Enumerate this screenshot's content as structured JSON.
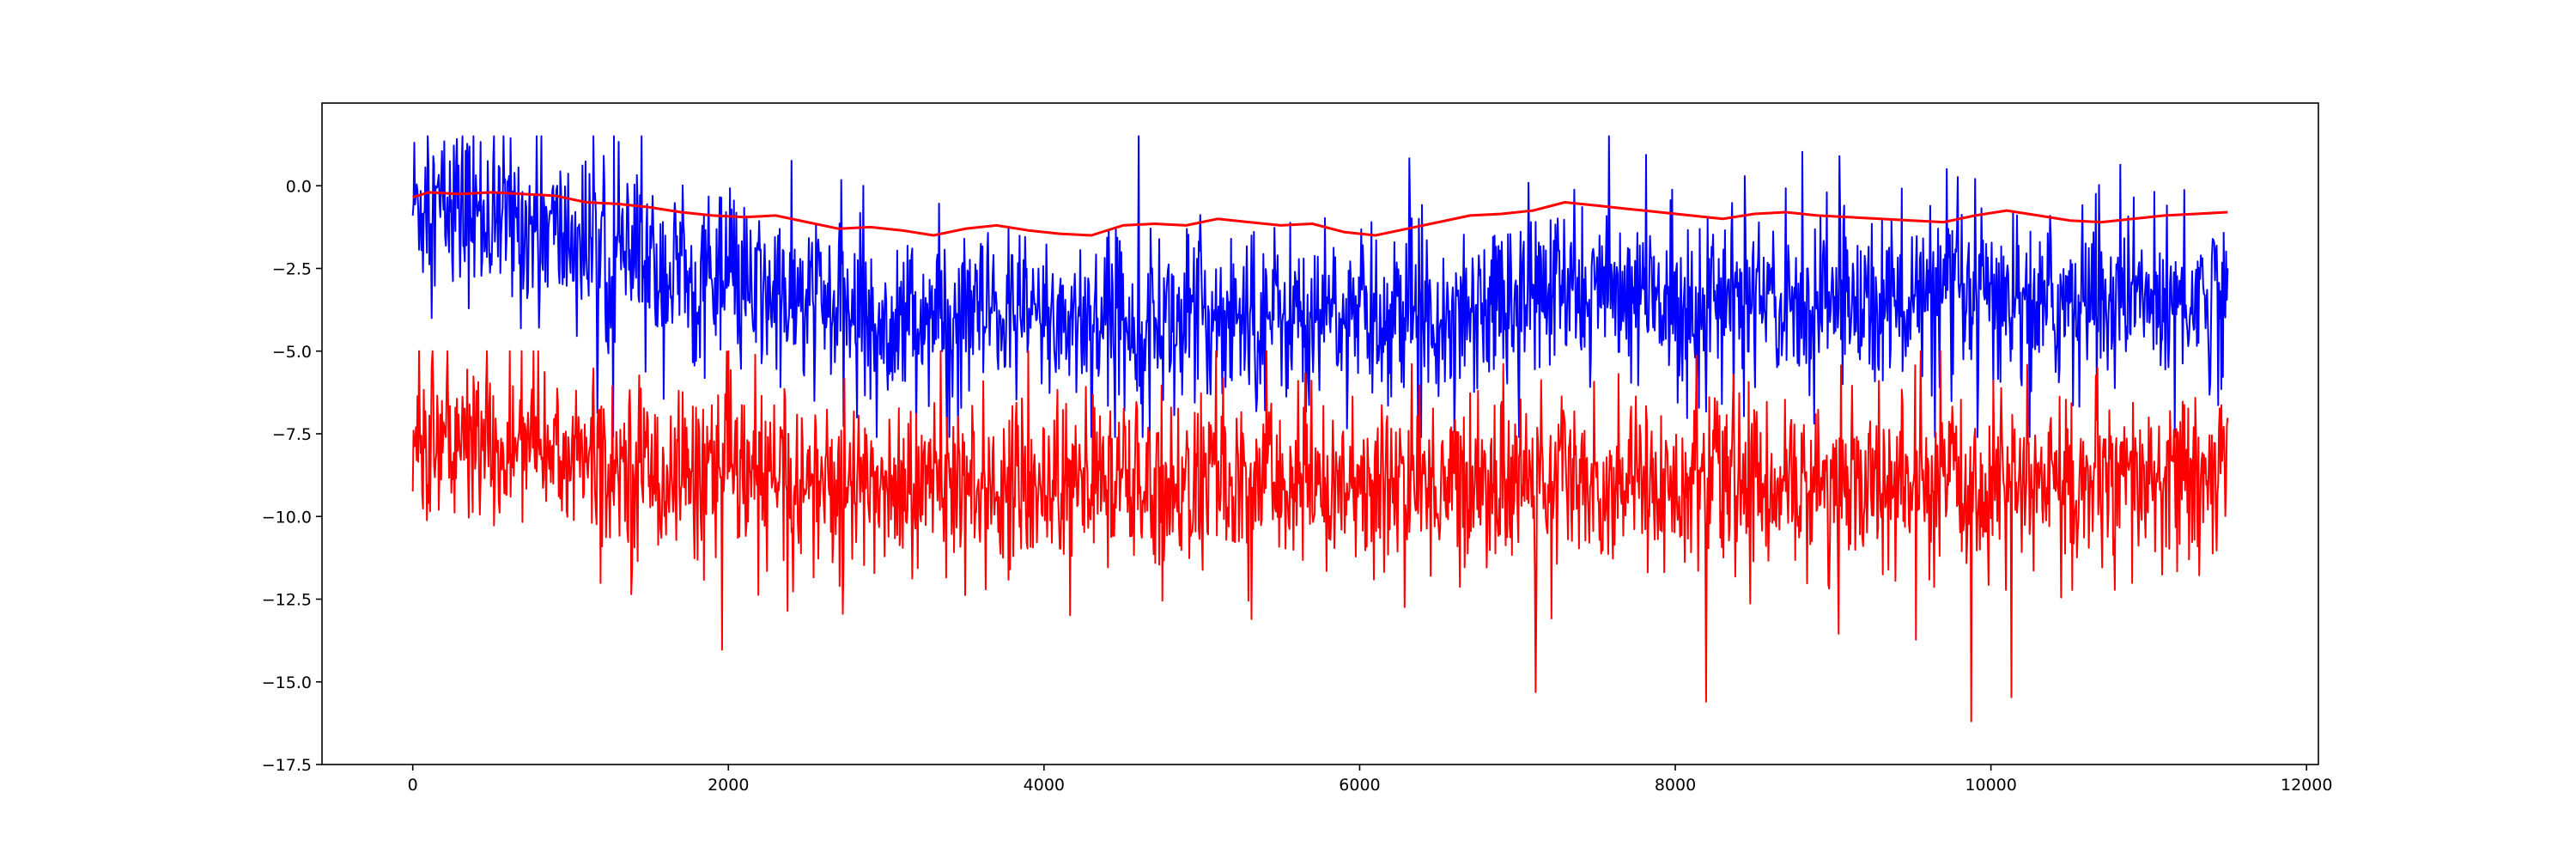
{
  "chart_data": {
    "type": "line",
    "title": "",
    "xlabel": "",
    "ylabel": "",
    "xlim": [
      -575,
      12075
    ],
    "ylim": [
      -17.5,
      2.5
    ],
    "grid": false,
    "legend": "none",
    "x_ticks": [
      0,
      2000,
      4000,
      6000,
      8000,
      10000,
      12000
    ],
    "x_tick_labels": [
      "0",
      "2000",
      "4000",
      "6000",
      "8000",
      "10000",
      "12000"
    ],
    "y_ticks": [
      0.0,
      -2.5,
      -5.0,
      -7.5,
      -10.0,
      -12.5,
      -15.0,
      -17.5
    ],
    "y_tick_labels": [
      "0.0",
      "−2.5",
      "−5.0",
      "−7.5",
      "−10.0",
      "−12.5",
      "−15.0",
      "−17.5"
    ],
    "x_range": [
      0,
      11500
    ],
    "series": [
      {
        "color": "#0000ff",
        "style": "noisy",
        "center_profile": {
          "x": [
            0,
            400,
            800,
            1200,
            1600,
            2000,
            2400,
            2800,
            3200,
            3600,
            4000,
            4400,
            4800,
            5200,
            5600,
            6000,
            6400,
            6800,
            7200,
            7600,
            8000,
            8400,
            8800,
            9200,
            9600,
            10000,
            10400,
            10800,
            11200,
            11500
          ],
          "y": [
            -0.5,
            -0.8,
            -1.3,
            -2.0,
            -2.7,
            -3.1,
            -3.5,
            -3.9,
            -4.0,
            -4.0,
            -4.0,
            -4.0,
            -4.0,
            -3.9,
            -3.9,
            -4.0,
            -3.8,
            -3.5,
            -3.2,
            -3.3,
            -3.5,
            -3.5,
            -3.4,
            -3.5,
            -3.5,
            -3.4,
            -3.5,
            -3.5,
            -3.4,
            -3.3
          ]
        },
        "spread": 1.3,
        "max": 1.5,
        "min": -7.6
      },
      {
        "color": "#ff0000",
        "style": "noisy",
        "center_profile": {
          "x": [
            0,
            400,
            800,
            1200,
            1600,
            2000,
            2400,
            2800,
            3200,
            3600,
            4000,
            4400,
            4800,
            5200,
            5600,
            6000,
            6400,
            6800,
            7200,
            7600,
            8000,
            8400,
            8800,
            9200,
            9600,
            10000,
            10400,
            10800,
            11200,
            11500
          ],
          "y": [
            -7.6,
            -7.8,
            -8.0,
            -8.3,
            -8.6,
            -8.8,
            -9.0,
            -9.1,
            -9.1,
            -9.0,
            -9.0,
            -9.0,
            -9.1,
            -9.0,
            -9.0,
            -9.1,
            -9.0,
            -8.9,
            -8.8,
            -8.9,
            -9.0,
            -9.0,
            -9.0,
            -9.1,
            -9.1,
            -9.0,
            -9.0,
            -9.1,
            -9.0,
            -9.0
          ]
        },
        "spread": 1.3,
        "max": -5.0,
        "min": -16.6
      },
      {
        "color": "#ff0000",
        "style": "smooth",
        "x": [
          0,
          100,
          300,
          500,
          700,
          900,
          1100,
          1300,
          1500,
          1700,
          1900,
          2100,
          2300,
          2500,
          2700,
          2900,
          3100,
          3300,
          3500,
          3700,
          3900,
          4100,
          4300,
          4500,
          4700,
          4900,
          5100,
          5300,
          5500,
          5700,
          5900,
          6100,
          6300,
          6500,
          6700,
          6900,
          7100,
          7300,
          7500,
          7700,
          7900,
          8100,
          8300,
          8500,
          8700,
          8900,
          9100,
          9300,
          9500,
          9700,
          9900,
          10100,
          10300,
          10500,
          10700,
          10900,
          11100,
          11300,
          11500
        ],
        "y": [
          -0.35,
          -0.2,
          -0.25,
          -0.2,
          -0.25,
          -0.3,
          -0.5,
          -0.55,
          -0.65,
          -0.8,
          -0.9,
          -0.95,
          -0.9,
          -1.1,
          -1.3,
          -1.25,
          -1.35,
          -1.5,
          -1.3,
          -1.2,
          -1.35,
          -1.45,
          -1.5,
          -1.2,
          -1.15,
          -1.2,
          -1.0,
          -1.1,
          -1.2,
          -1.15,
          -1.4,
          -1.5,
          -1.3,
          -1.1,
          -0.9,
          -0.85,
          -0.75,
          -0.5,
          -0.6,
          -0.7,
          -0.8,
          -0.9,
          -1.0,
          -0.85,
          -0.8,
          -0.9,
          -0.95,
          -1.0,
          -1.05,
          -1.1,
          -0.9,
          -0.75,
          -0.9,
          -1.05,
          -1.1,
          -1.0,
          -0.9,
          -0.85,
          -0.8
        ]
      }
    ]
  }
}
